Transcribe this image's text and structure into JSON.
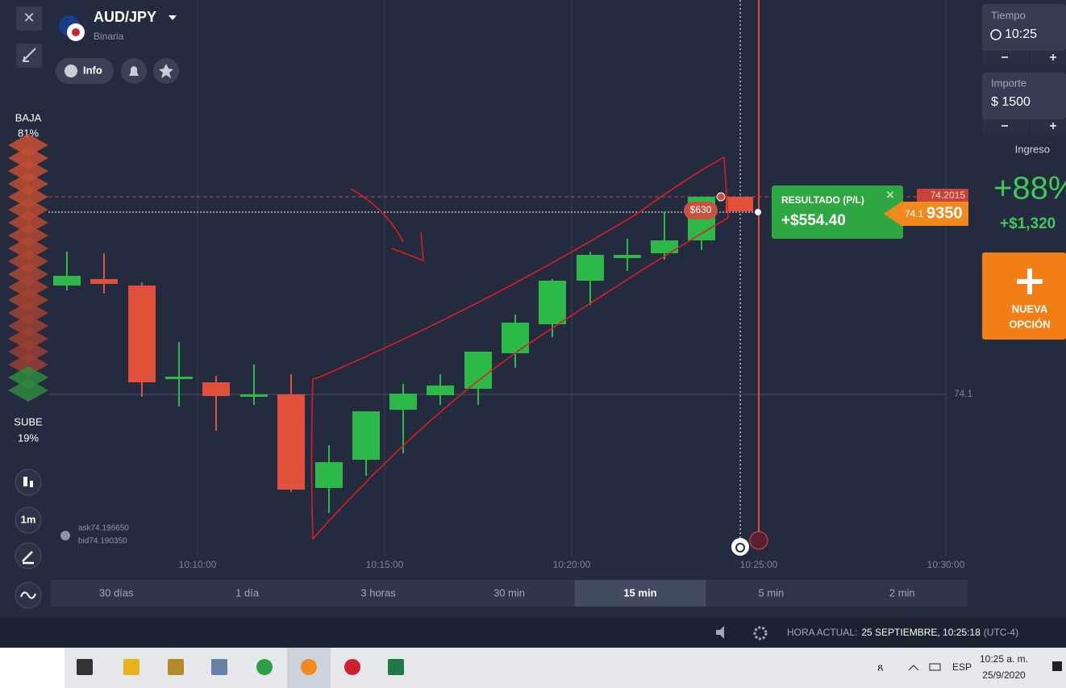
{
  "header": {
    "pair": "AUD/JPY",
    "type": "Binaria",
    "info": "Info"
  },
  "sentiment": {
    "down_label": "BAJA",
    "down_pct": "81%",
    "up_label": "SUBE",
    "up_pct": "19%"
  },
  "toolbar": {
    "interval": "1m"
  },
  "quote": {
    "ask": "ask74.196650",
    "bid": "bid74.190350"
  },
  "axis": {
    "price_label": "74.1",
    "times": [
      "10:10:00",
      "10:15:00",
      "10:20:00",
      "10:25:00",
      "10:30:00"
    ]
  },
  "periods": [
    "30 días",
    "1 día",
    "3 horas",
    "30 min",
    "15 min",
    "5 min",
    "2 min"
  ],
  "selected_period": "15 min",
  "trade": {
    "stake_marker": "$630",
    "result_title": "RESULTADO (P/L)",
    "result_value": "+$554.40",
    "price_top": "74.2015",
    "price_current_head": "74.1",
    "price_current_tail": "9350"
  },
  "panel": {
    "time_label": "Tiempo",
    "time_value": "10:25",
    "amount_label": "Importe",
    "amount_value": "$ 1500",
    "income_label": "Ingreso",
    "income_pct": "+88%",
    "income_value": "+$1,320",
    "new_option": [
      "NUEVA",
      "OPCIÓN"
    ]
  },
  "status": {
    "clock_label": "HORA ACTUAL:",
    "clock_value": "25 SEPTIEMBRE, 10:25:18",
    "timezone": "(UTC-4)"
  },
  "taskbar": {
    "language": "ESP",
    "time": "10:25 a. m.",
    "date": "25/9/2020"
  }
}
